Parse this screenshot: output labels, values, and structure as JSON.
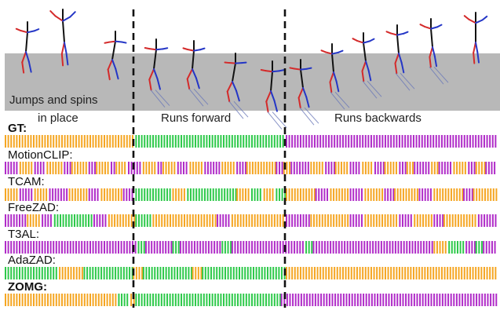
{
  "colors": {
    "jump": "#f5a623",
    "run_forward": "#2ec94a",
    "run_backward": "#b02cc8",
    "skeleton_left": "#d42a2a",
    "skeleton_right": "#2436c6",
    "skeleton_spine": "#111111",
    "shadow": "#6a78b8",
    "floor": "#b8b8b8",
    "divider": "#111111"
  },
  "segments": [
    {
      "caption": "Jumps and spins",
      "caption2": "in place"
    },
    {
      "caption": "Runs forward"
    },
    {
      "caption": "Runs backwards"
    }
  ],
  "methods": [
    {
      "name": "GT:",
      "bold": true,
      "runs": [
        [
          "jump",
          0.265
        ],
        [
          "run_forward",
          0.57
        ],
        [
          "run_backward",
          1.0
        ]
      ]
    },
    {
      "name": "MotionCLIP:",
      "bold": false,
      "runs": [
        [
          "run_backward",
          0.03
        ],
        [
          "jump",
          0.06
        ],
        [
          "run_backward",
          0.085
        ],
        [
          "jump",
          0.12
        ],
        [
          "run_backward",
          0.135
        ],
        [
          "jump",
          0.17
        ],
        [
          "run_backward",
          0.185
        ],
        [
          "jump",
          0.215
        ],
        [
          "run_backward",
          0.225
        ],
        [
          "jump",
          0.25
        ],
        [
          "run_backward",
          0.28
        ],
        [
          "jump",
          0.31
        ],
        [
          "run_backward",
          0.32
        ],
        [
          "jump",
          0.35
        ],
        [
          "run_backward",
          0.375
        ],
        [
          "jump",
          0.405
        ],
        [
          "run_backward",
          0.44
        ],
        [
          "jump",
          0.47
        ],
        [
          "run_backward",
          0.49
        ],
        [
          "jump",
          0.55
        ],
        [
          "run_backward",
          0.565
        ],
        [
          "jump",
          0.58
        ],
        [
          "run_backward",
          0.62
        ],
        [
          "jump",
          0.65
        ],
        [
          "run_backward",
          0.67
        ],
        [
          "jump",
          0.7
        ],
        [
          "run_backward",
          0.725
        ],
        [
          "jump",
          0.75
        ],
        [
          "run_backward",
          0.77
        ],
        [
          "jump",
          0.8
        ],
        [
          "run_backward",
          0.815
        ],
        [
          "jump",
          0.83
        ],
        [
          "run_backward",
          0.865
        ],
        [
          "jump",
          0.88
        ],
        [
          "run_backward",
          0.91
        ],
        [
          "jump",
          0.94
        ],
        [
          "run_backward",
          0.955
        ],
        [
          "jump",
          0.975
        ],
        [
          "run_backward",
          1.0
        ]
      ]
    },
    {
      "name": "TCAM:",
      "bold": false,
      "runs": [
        [
          "jump",
          0.03
        ],
        [
          "run_backward",
          0.06
        ],
        [
          "jump",
          0.09
        ],
        [
          "run_backward",
          0.13
        ],
        [
          "jump",
          0.17
        ],
        [
          "run_backward",
          0.195
        ],
        [
          "jump",
          0.24
        ],
        [
          "run_backward",
          0.265
        ],
        [
          "run_forward",
          0.34
        ],
        [
          "jump",
          0.37
        ],
        [
          "run_forward",
          0.47
        ],
        [
          "jump",
          0.5
        ],
        [
          "run_forward",
          0.525
        ],
        [
          "jump",
          0.55
        ],
        [
          "run_forward",
          0.57
        ],
        [
          "jump",
          0.63
        ],
        [
          "run_backward",
          0.66
        ],
        [
          "jump",
          0.7
        ],
        [
          "run_backward",
          0.73
        ],
        [
          "jump",
          0.77
        ],
        [
          "run_backward",
          0.79
        ],
        [
          "jump",
          0.84
        ],
        [
          "run_backward",
          0.87
        ],
        [
          "jump",
          0.93
        ],
        [
          "run_backward",
          0.95
        ],
        [
          "jump",
          1.0
        ]
      ]
    },
    {
      "name": "FreeZAD:",
      "bold": false,
      "runs": [
        [
          "run_backward",
          0.045
        ],
        [
          "jump",
          0.075
        ],
        [
          "run_backward",
          0.1
        ],
        [
          "run_forward",
          0.18
        ],
        [
          "run_backward",
          0.21
        ],
        [
          "jump",
          0.265
        ],
        [
          "run_forward",
          0.3
        ],
        [
          "jump",
          0.43
        ],
        [
          "run_backward",
          0.46
        ],
        [
          "jump",
          0.57
        ],
        [
          "run_backward",
          0.62
        ],
        [
          "jump",
          0.7
        ],
        [
          "run_backward",
          0.73
        ],
        [
          "jump",
          0.8
        ],
        [
          "run_backward",
          0.83
        ],
        [
          "jump",
          0.87
        ],
        [
          "run_backward",
          0.89
        ],
        [
          "jump",
          0.96
        ],
        [
          "run_backward",
          1.0
        ]
      ]
    },
    {
      "name": "T3AL:",
      "bold": false,
      "runs": [
        [
          "run_backward",
          0.27
        ],
        [
          "run_forward",
          0.285
        ],
        [
          "run_backward",
          0.34
        ],
        [
          "run_forward",
          0.355
        ],
        [
          "run_backward",
          0.44
        ],
        [
          "run_forward",
          0.46
        ],
        [
          "run_backward",
          0.61
        ],
        [
          "run_forward",
          0.625
        ],
        [
          "run_backward",
          0.87
        ],
        [
          "jump",
          0.9
        ],
        [
          "run_forward",
          0.935
        ],
        [
          "run_backward",
          0.955
        ],
        [
          "run_forward",
          0.97
        ],
        [
          "run_backward",
          1.0
        ]
      ]
    },
    {
      "name": "AdaZAD:",
      "bold": false,
      "runs": [
        [
          "run_forward",
          0.11
        ],
        [
          "jump",
          0.16
        ],
        [
          "run_forward",
          0.26
        ],
        [
          "jump",
          0.28
        ],
        [
          "run_forward",
          0.38
        ],
        [
          "jump",
          0.4
        ],
        [
          "run_forward",
          0.57
        ],
        [
          "jump",
          1.0
        ]
      ]
    },
    {
      "name": "ZOMG:",
      "bold": true,
      "runs": [
        [
          "jump",
          0.23
        ],
        [
          "run_forward",
          0.255
        ],
        [
          "jump",
          0.265
        ],
        [
          "run_forward",
          0.56
        ],
        [
          "run_backward",
          1.0
        ]
      ]
    }
  ]
}
